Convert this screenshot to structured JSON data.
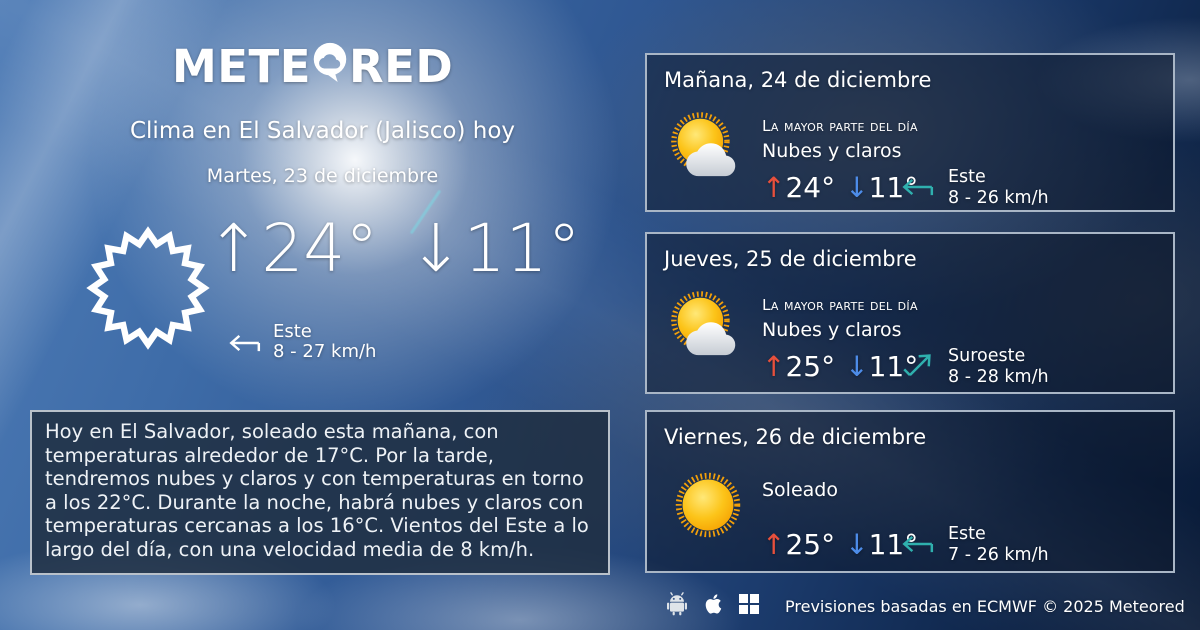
{
  "logo": {
    "part1": "METE",
    "part2": "RED"
  },
  "header": {
    "title": "Clima en El Salvador (Jalisco) hoy",
    "date": "Martes, 23 de diciembre"
  },
  "icons": {
    "up_arrow": "↑",
    "down_arrow": "↓"
  },
  "today": {
    "icon": "sun-outline",
    "temp_max": "24°",
    "temp_min": "11°",
    "wind": {
      "direction": "Este",
      "speed": "8 - 27 km/h",
      "bearing": "east"
    }
  },
  "summary": "Hoy en El Salvador, soleado esta mañana, con temperaturas alrededor de 17°C. Por la tarde, tendremos nubes y claros y con temperaturas en torno a los 22°C. Durante la noche, habrá nubes y claros  con temperaturas cercanas a los 16°C. Vientos del Este a lo largo del día, con una velocidad media de 8 km/h.",
  "forecast": [
    {
      "title": "Mañana, 24 de diciembre",
      "icon": "sun-cloud",
      "period_label": "La mayor parte del día",
      "condition": "Nubes y claros",
      "temp_max": "24°",
      "temp_min": "11°",
      "wind_direction": "Este",
      "wind_speed": "8 - 26 km/h",
      "wind_bearing": "east"
    },
    {
      "title": "Jueves, 25 de diciembre",
      "icon": "sun-cloud",
      "period_label": "La mayor parte del día",
      "condition": "Nubes y claros",
      "temp_max": "25°",
      "temp_min": "11°",
      "wind_direction": "Suroeste",
      "wind_speed": "8 - 28 km/h",
      "wind_bearing": "southwest"
    },
    {
      "title": "Viernes, 26 de diciembre",
      "icon": "sun",
      "period_label": "",
      "condition": "Soleado",
      "temp_max": "25°",
      "temp_min": "11°",
      "wind_direction": "Este",
      "wind_speed": "7 - 26 km/h",
      "wind_bearing": "east"
    }
  ],
  "footer": {
    "platforms": [
      "android",
      "apple",
      "windows"
    ],
    "text": "Previsiones basadas en ECMWF © 2025 Meteored"
  },
  "colors": {
    "temp_up": "#e8503c",
    "temp_down": "#4d8ce8",
    "wind_arrow": "#2fb0ae",
    "sun_yellow": "#fcc419",
    "sun_orange": "#f59f00"
  }
}
